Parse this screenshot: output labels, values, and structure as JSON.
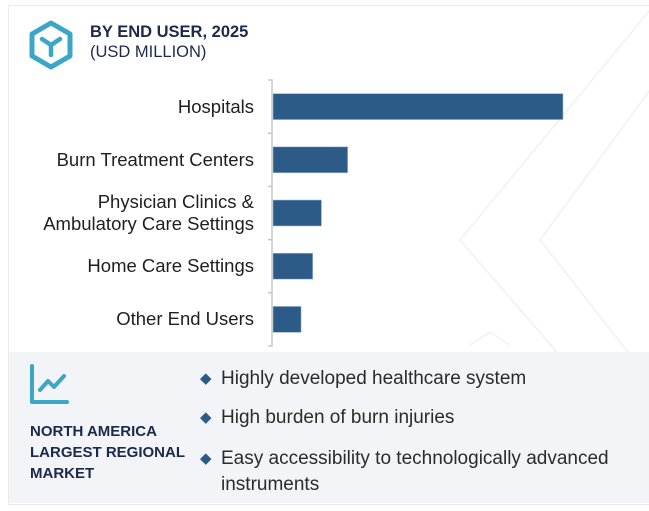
{
  "header": {
    "icon": "cube-icon",
    "title": "BY END USER, 2025",
    "subtitle": "(USD MILLION)"
  },
  "colors": {
    "bar": "#2d5b87",
    "accent": "#3ba6c6",
    "title": "#1b2a4a",
    "panel_bg": "#f3f4f7"
  },
  "chart_data": {
    "type": "bar",
    "orientation": "horizontal",
    "title": "BY END USER, 2025",
    "subtitle": "(USD MILLION)",
    "categories": [
      "Hospitals",
      "Burn Treatment Centers",
      "Physician Clinics & Ambulatory Care Settings",
      "Home Care Settings",
      "Other End Users"
    ],
    "category_lines": [
      [
        "Hospitals"
      ],
      [
        "Burn Treatment Centers"
      ],
      [
        "Physician Clinics &",
        "Ambulatory Care Settings"
      ],
      [
        "Home Care Settings"
      ],
      [
        "Other End Users"
      ]
    ],
    "values": [
      100,
      26,
      17,
      14,
      10
    ],
    "value_note": "relative estimates; no value axis shown",
    "xlabel": "",
    "ylabel": "",
    "xlim": [
      0,
      100
    ],
    "grid": false,
    "legend": "none"
  },
  "panel": {
    "icon": "trend-chart-icon",
    "region_lines": [
      "NORTH AMERICA",
      "LARGEST REGIONAL",
      "MARKET"
    ],
    "bullets": [
      {
        "lines": [
          "Highly developed healthcare system"
        ]
      },
      {
        "lines": [
          "High burden of burn injuries"
        ]
      },
      {
        "lines": [
          "Easy accessibility to technologically advanced",
          "instruments"
        ]
      }
    ]
  }
}
